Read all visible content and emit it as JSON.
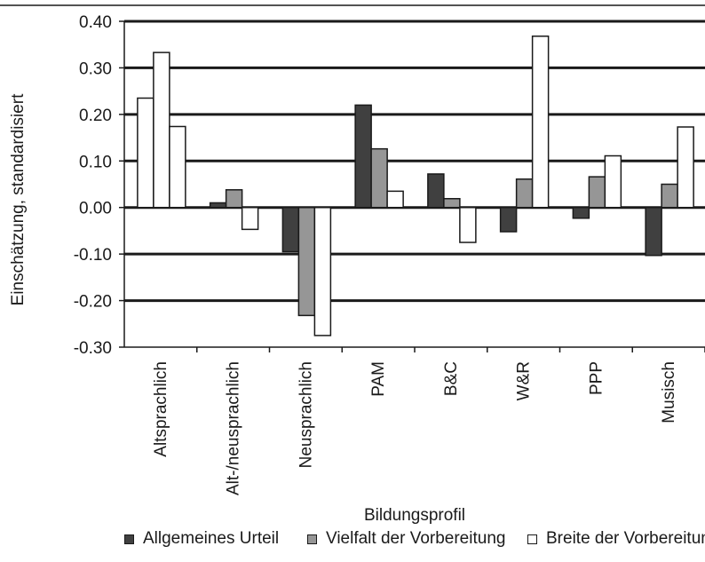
{
  "chart_data": {
    "type": "bar",
    "title": "",
    "xlabel": "Bildungsprofil",
    "ylabel": "Einschätzung, standardisiert",
    "ylim": [
      -0.3,
      0.4
    ],
    "y_ticks": [
      "0.40",
      "0.30",
      "0.20",
      "0.10",
      "0.00",
      "-0.10",
      "-0.20",
      "-0.30"
    ],
    "grid": true,
    "legend_position": "bottom",
    "categories": [
      "Altsprachlich",
      "Alt-/neusprachlich",
      "Neusprachlich",
      "PAM",
      "B&C",
      "W&R",
      "PPP",
      "Musisch"
    ],
    "series": [
      {
        "name": "Allgemeines Urteil",
        "color": "#404040",
        "values": [
          null,
          0.01,
          -0.095,
          0.22,
          0.072,
          -0.052,
          -0.023,
          -0.103
        ]
      },
      {
        "name": "Vielfalt der Vorbereitung",
        "color": "#969696",
        "values": [
          0.235,
          0.038,
          -0.232,
          0.126,
          0.019,
          0.061,
          0.066,
          0.05
        ]
      },
      {
        "name": "Breite der Vorbereitung",
        "color": "#ffffff",
        "values": [
          0.333,
          -0.047,
          -0.275,
          0.035,
          -0.075,
          0.368,
          0.111,
          0.173
        ]
      }
    ],
    "extra_bars": [
      {
        "category": "Altsprachlich",
        "value": 0.174,
        "color": "#ffffff"
      }
    ]
  }
}
